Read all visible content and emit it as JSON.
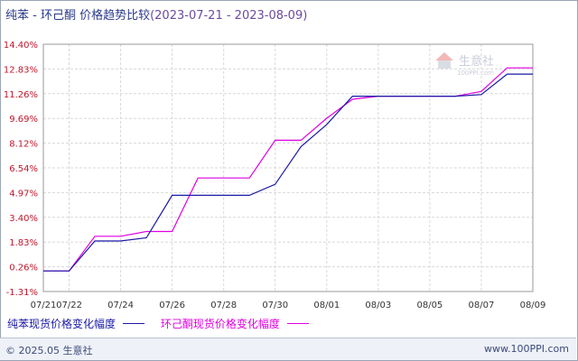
{
  "title": {
    "main": "纯苯 - 环己酮 价格趋势比较",
    "range": "(2023-07-21 - 2023-08-09)"
  },
  "watermark": {
    "text": "生意社",
    "sub": "100PPI.com"
  },
  "legend": [
    {
      "label": "纯苯现货价格变化幅度",
      "color": "#1a1aa6"
    },
    {
      "label": "环己酮现货价格变化幅度",
      "color": "#e000e0"
    }
  ],
  "footer": {
    "left": "© 2025.05 生意社",
    "right": "www.100PPI.com"
  },
  "chart_data": {
    "type": "line",
    "x": [
      "07/21",
      "07/22",
      "07/23",
      "07/24",
      "07/25",
      "07/26",
      "07/27",
      "07/28",
      "07/29",
      "07/30",
      "07/31",
      "08/01",
      "08/02",
      "08/03",
      "08/04",
      "08/05",
      "08/06",
      "08/07",
      "08/08",
      "08/09"
    ],
    "xticks": [
      "07/21",
      "07/22",
      "07/24",
      "07/26",
      "07/28",
      "07/30",
      "08/01",
      "08/03",
      "08/05",
      "08/07",
      "08/09"
    ],
    "yticks": [
      "-1.31%",
      "0.26%",
      "1.83%",
      "3.40%",
      "4.97%",
      "6.54%",
      "8.12%",
      "9.69%",
      "11.26%",
      "12.83%",
      "14.40%"
    ],
    "ylim": [
      -1.31,
      14.4
    ],
    "grid": true,
    "legend_position": "bottom",
    "series": [
      {
        "name": "纯苯现货价格变化幅度",
        "color": "#1a1aa6",
        "values": [
          0,
          0,
          1.9,
          1.9,
          2.1,
          4.8,
          4.8,
          4.8,
          4.8,
          5.5,
          7.9,
          9.3,
          11.1,
          11.1,
          11.1,
          11.1,
          11.1,
          11.2,
          12.5,
          12.5
        ]
      },
      {
        "name": "环己酮现货价格变化幅度",
        "color": "#e000e0",
        "values": [
          0,
          0,
          2.2,
          2.2,
          2.5,
          2.5,
          5.9,
          5.9,
          5.9,
          8.3,
          8.3,
          9.7,
          10.9,
          11.1,
          11.1,
          11.1,
          11.1,
          11.4,
          12.9,
          12.9
        ]
      }
    ]
  }
}
